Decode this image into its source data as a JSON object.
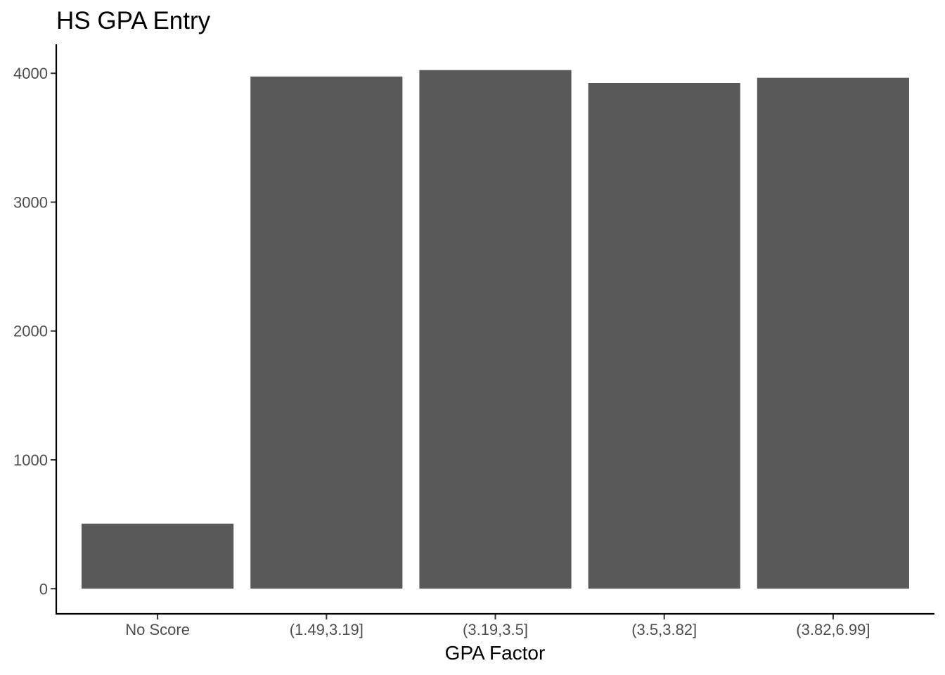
{
  "chart_data": {
    "type": "bar",
    "title": "HS GPA Entry",
    "xlabel": "GPA Factor",
    "ylabel": "",
    "categories": [
      "No Score",
      "(1.49,3.19]",
      "(3.19,3.5]",
      "(3.5,3.82]",
      "(3.82,6.99]"
    ],
    "values": [
      505,
      3975,
      4025,
      3925,
      3965
    ],
    "yticks": [
      0,
      1000,
      2000,
      3000,
      4000
    ],
    "ylim": [
      -195,
      4225
    ],
    "grid": false,
    "legend": "none",
    "bar_color": "#595959"
  }
}
